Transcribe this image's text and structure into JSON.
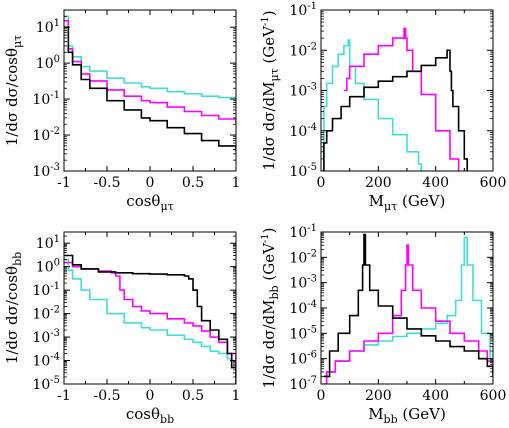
{
  "colors": {
    "black": "#000000",
    "magenta": "#ff00ff",
    "turquoise": "#40e0d0"
  },
  "chart_data": [
    {
      "type": "line",
      "xscale": "linear",
      "yscale": "log",
      "xlim": [
        -1,
        1
      ],
      "ylim": [
        0.001,
        30
      ],
      "xticks": [
        {
          "v": -1,
          "t": "-1"
        },
        {
          "v": -0.5,
          "t": "-0.5"
        },
        {
          "v": 0,
          "t": "0"
        },
        {
          "v": 0.5,
          "t": "0.5"
        },
        {
          "v": 1,
          "t": "1"
        }
      ],
      "yticks": [
        {
          "v": 0.001,
          "b": "10",
          "e": "-3"
        },
        {
          "v": 0.01,
          "b": "10",
          "e": "-2"
        },
        {
          "v": 0.1,
          "b": "10",
          "e": "-1"
        },
        {
          "v": 1,
          "b": "10",
          "e": "0"
        },
        {
          "v": 10,
          "b": "10",
          "e": "1"
        }
      ],
      "xlabel": {
        "main": "cosθ",
        "sub": "μτ",
        "tail": ""
      },
      "ylabel": {
        "main": "1/dσ dσ/cosθ",
        "sub": "μτ",
        "tail": ""
      },
      "series": [
        {
          "color": "#40e0d0",
          "x": [
            -1,
            -0.95,
            -0.9,
            -0.8,
            -0.7,
            -0.5,
            -0.3,
            -0.1,
            0,
            0.2,
            0.4,
            0.6,
            0.8,
            1
          ],
          "y": [
            20,
            3,
            1.5,
            0.8,
            0.6,
            0.38,
            0.28,
            0.22,
            0.2,
            0.16,
            0.14,
            0.12,
            0.11,
            0.1
          ]
        },
        {
          "color": "#ff00ff",
          "x": [
            -1,
            -0.95,
            -0.9,
            -0.8,
            -0.7,
            -0.5,
            -0.3,
            -0.1,
            0,
            0.2,
            0.4,
            0.6,
            0.8,
            1
          ],
          "y": [
            15,
            2.5,
            1.1,
            0.5,
            0.32,
            0.18,
            0.12,
            0.09,
            0.08,
            0.06,
            0.045,
            0.035,
            0.028,
            0.022
          ]
        },
        {
          "color": "#000000",
          "x": [
            -1,
            -0.95,
            -0.9,
            -0.8,
            -0.7,
            -0.5,
            -0.3,
            -0.1,
            0,
            0.2,
            0.4,
            0.6,
            0.8,
            1
          ],
          "y": [
            10,
            2,
            0.9,
            0.35,
            0.2,
            0.09,
            0.05,
            0.03,
            0.025,
            0.016,
            0.011,
            0.007,
            0.005,
            0.0035
          ]
        }
      ]
    },
    {
      "type": "line",
      "xscale": "linear",
      "yscale": "log",
      "xlim": [
        0,
        600
      ],
      "ylim": [
        1e-05,
        0.1
      ],
      "xticks": [
        {
          "v": 0,
          "t": "0"
        },
        {
          "v": 200,
          "t": "200"
        },
        {
          "v": 400,
          "t": "400"
        },
        {
          "v": 600,
          "t": "600"
        }
      ],
      "yticks": [
        {
          "v": 1e-05,
          "b": "10",
          "e": "-5"
        },
        {
          "v": 0.0001,
          "b": "10",
          "e": "-4"
        },
        {
          "v": 0.001,
          "b": "10",
          "e": "-3"
        },
        {
          "v": 0.01,
          "b": "10",
          "e": "-2"
        },
        {
          "v": 0.1,
          "b": "10",
          "e": "-1"
        }
      ],
      "xlabel": {
        "main": "M",
        "sub": "μτ",
        "tail": " (GeV)"
      },
      "ylabel": {
        "main": "1/dσ dσ/dM",
        "sub": "μτ",
        "tail": " (GeV",
        "sup": "-1",
        "close": ")"
      },
      "series": [
        {
          "color": "#40e0d0",
          "x": [
            5,
            10,
            20,
            40,
            60,
            80,
            95,
            100,
            120,
            150,
            200,
            250,
            300,
            340,
            350
          ],
          "y": [
            1e-05,
            0.0004,
            0.0015,
            0.004,
            0.008,
            0.013,
            0.018,
            0.004,
            0.0015,
            0.0006,
            0.0002,
            8e-05,
            3e-05,
            1.5e-05,
            1e-05
          ]
        },
        {
          "color": "#ff00ff",
          "x": [
            80,
            90,
            100,
            150,
            200,
            250,
            290,
            295,
            300,
            320,
            350,
            400,
            450,
            480
          ],
          "y": [
            0.001,
            0.002,
            0.004,
            0.008,
            0.013,
            0.02,
            0.035,
            0.02,
            0.01,
            0.003,
            0.0008,
            0.0001,
            2e-05,
            1e-05
          ]
        },
        {
          "color": "#000000",
          "x": [
            5,
            10,
            20,
            40,
            70,
            100,
            150,
            200,
            250,
            300,
            350,
            400,
            440,
            450,
            455,
            460,
            480,
            500,
            510
          ],
          "y": [
            1e-05,
            5e-05,
            0.0001,
            0.0002,
            0.0004,
            0.0007,
            0.0012,
            0.0017,
            0.0022,
            0.003,
            0.0042,
            0.0065,
            0.01,
            0.003,
            0.001,
            0.0004,
            0.0001,
            2e-05,
            1e-05
          ]
        }
      ]
    },
    {
      "type": "line",
      "xscale": "linear",
      "yscale": "log",
      "xlim": [
        -1,
        1
      ],
      "ylim": [
        1e-05,
        30
      ],
      "xticks": [
        {
          "v": -1,
          "t": "-1"
        },
        {
          "v": -0.5,
          "t": "-0.5"
        },
        {
          "v": 0,
          "t": "0"
        },
        {
          "v": 0.5,
          "t": "0.5"
        },
        {
          "v": 1,
          "t": "1"
        }
      ],
      "yticks": [
        {
          "v": 1e-05,
          "b": "10",
          "e": "-5"
        },
        {
          "v": 0.0001,
          "b": "10",
          "e": "-4"
        },
        {
          "v": 0.001,
          "b": "10",
          "e": "-3"
        },
        {
          "v": 0.01,
          "b": "10",
          "e": "-2"
        },
        {
          "v": 0.1,
          "b": "10",
          "e": "-1"
        },
        {
          "v": 1,
          "b": "10",
          "e": "0"
        },
        {
          "v": 10,
          "b": "10",
          "e": "1"
        }
      ],
      "xlabel": {
        "main": "cosθ",
        "sub": "bb",
        "tail": ""
      },
      "ylabel": {
        "main": "1/dσ dσ/cosθ",
        "sub": "bb",
        "tail": ""
      },
      "series": [
        {
          "color": "#40e0d0",
          "x": [
            -1,
            -0.95,
            -0.9,
            -0.8,
            -0.7,
            -0.5,
            -0.3,
            -0.1,
            0,
            0.2,
            0.4,
            0.5,
            0.6,
            0.7,
            0.8,
            0.9,
            0.95,
            1
          ],
          "y": [
            2,
            0.7,
            0.3,
            0.1,
            0.04,
            0.01,
            0.004,
            0.0025,
            0.002,
            0.0012,
            0.0008,
            0.0006,
            0.0004,
            0.00025,
            0.0002,
            0.00012,
            5e-05,
            2e-05
          ]
        },
        {
          "color": "#ff00ff",
          "x": [
            -1,
            -0.9,
            -0.8,
            -0.6,
            -0.45,
            -0.4,
            -0.35,
            -0.3,
            -0.2,
            -0.1,
            0,
            0.2,
            0.4,
            0.5,
            0.6,
            0.7,
            0.8,
            0.9,
            1
          ],
          "y": [
            1.5,
            1,
            0.8,
            0.65,
            0.55,
            0.4,
            0.1,
            0.04,
            0.02,
            0.013,
            0.01,
            0.006,
            0.004,
            0.003,
            0.0018,
            0.001,
            0.0006,
            0.0002,
            5e-05
          ]
        },
        {
          "color": "#000000",
          "x": [
            -1,
            -0.9,
            -0.8,
            -0.6,
            -0.4,
            -0.2,
            0,
            0.2,
            0.4,
            0.45,
            0.5,
            0.55,
            0.6,
            0.7,
            0.8,
            0.9,
            0.95,
            1
          ],
          "y": [
            3,
            1.2,
            0.8,
            0.6,
            0.55,
            0.5,
            0.48,
            0.45,
            0.4,
            0.3,
            0.1,
            0.02,
            0.005,
            0.002,
            0.0008,
            0.0002,
            5e-05,
            1e-05
          ]
        }
      ]
    },
    {
      "type": "line",
      "xscale": "linear",
      "yscale": "log",
      "xlim": [
        0,
        600
      ],
      "ylim": [
        1e-07,
        0.1
      ],
      "xticks": [
        {
          "v": 0,
          "t": "0"
        },
        {
          "v": 200,
          "t": "200"
        },
        {
          "v": 400,
          "t": "400"
        },
        {
          "v": 600,
          "t": "600"
        }
      ],
      "yticks": [
        {
          "v": 1e-07,
          "b": "10",
          "e": "-7"
        },
        {
          "v": 1e-06,
          "b": "10",
          "e": "-6"
        },
        {
          "v": 1e-05,
          "b": "10",
          "e": "-5"
        },
        {
          "v": 0.0001,
          "b": "10",
          "e": "-4"
        },
        {
          "v": 0.001,
          "b": "10",
          "e": "-3"
        },
        {
          "v": 0.01,
          "b": "10",
          "e": "-2"
        },
        {
          "v": 0.1,
          "b": "10",
          "e": "-1"
        }
      ],
      "xlabel": {
        "main": "M",
        "sub": "bb",
        "tail": " (GeV)"
      },
      "ylabel": {
        "main": "1/dσ dσ/dM",
        "sub": "bb",
        "tail": " (GeV",
        "sup": "-1",
        "close": ")"
      },
      "series": [
        {
          "color": "#40e0d0",
          "x": [
            10,
            20,
            50,
            100,
            150,
            200,
            250,
            300,
            350,
            400,
            440,
            470,
            490,
            500,
            510,
            530,
            560,
            590,
            600
          ],
          "y": [
            1e-07,
            3e-07,
            8e-07,
            2e-06,
            3.5e-06,
            5e-06,
            7.5e-06,
            1e-05,
            1.5e-05,
            2.5e-05,
            5e-05,
            0.0002,
            0.005,
            0.06,
            0.005,
            0.0002,
            1e-05,
            1e-06,
            3e-07
          ]
        },
        {
          "color": "#ff00ff",
          "x": [
            10,
            20,
            50,
            100,
            150,
            200,
            250,
            280,
            295,
            300,
            305,
            320,
            350,
            400,
            450,
            500,
            550,
            580,
            600
          ],
          "y": [
            1e-07,
            3e-07,
            8e-07,
            2e-06,
            5e-06,
            1e-05,
            5e-05,
            0.0005,
            0.005,
            0.03,
            0.005,
            0.0005,
            0.0001,
            3e-05,
            1e-05,
            5e-06,
            2e-06,
            8e-07,
            2e-07
          ]
        },
        {
          "color": "#000000",
          "x": [
            10,
            30,
            60,
            100,
            130,
            145,
            150,
            155,
            170,
            200,
            250,
            300,
            350,
            400,
            450,
            500,
            550,
            580,
            600
          ],
          "y": [
            2e-07,
            2e-06,
            1e-05,
            5e-05,
            0.0005,
            0.005,
            0.08,
            0.005,
            0.0005,
            0.00012,
            4e-05,
            1.5e-05,
            8e-06,
            5e-06,
            3e-06,
            2e-06,
            1e-06,
            5e-07,
            2e-07
          ]
        }
      ]
    }
  ]
}
